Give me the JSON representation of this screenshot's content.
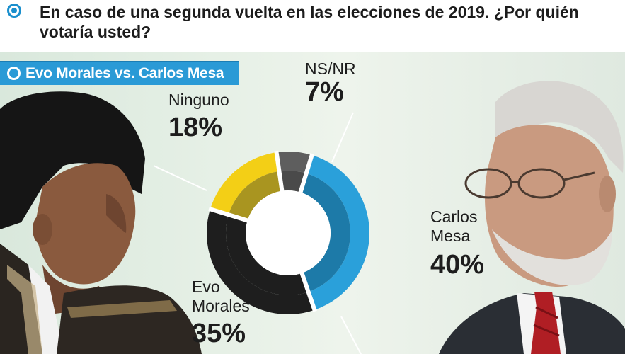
{
  "header": {
    "bullet_icon": "circle-bullet-icon",
    "title": "En caso de una segunda vuelta en las elecciones de 2019. ¿Por quién votaría usted?"
  },
  "panel": {
    "tag_icon": "circle-bullet-icon",
    "tag_text": "Evo Morales vs. Carlos Mesa"
  },
  "chart_data": {
    "type": "pie",
    "title": "",
    "variant": "donut",
    "slices": [
      {
        "label_lines": [
          "Carlos",
          "Mesa"
        ],
        "value": 40,
        "value_label": "40%",
        "outer_color": "#2aa0da",
        "inner_color": "#1d7aa8"
      },
      {
        "label_lines": [
          "Evo",
          "Morales"
        ],
        "value": 35,
        "value_label": "35%",
        "outer_color": "#1e1e1e",
        "inner_color": "#1e1e1e"
      },
      {
        "label_lines": [
          "Ninguno"
        ],
        "value": 18,
        "value_label": "18%",
        "outer_color": "#f3cf16",
        "inner_color": "#a99520"
      },
      {
        "label_lines": [
          "NS/NR"
        ],
        "value": 7,
        "value_label": "7%",
        "outer_color": "#5e5e5e",
        "inner_color": "#4a4a4a"
      }
    ]
  },
  "colors": {
    "accent_blue": "#2a9ad6",
    "panel_bg": "#e6f0e6"
  }
}
